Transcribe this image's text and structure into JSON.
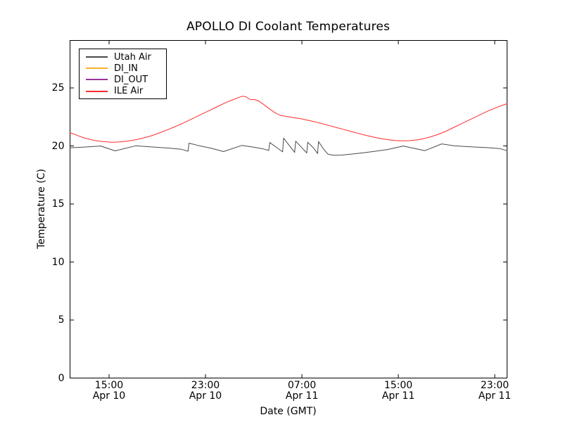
{
  "figure_background": "#ffffff",
  "frame_color": "#000000",
  "chart_data": {
    "type": "line",
    "title": "APOLLO DI Coolant Temperatures",
    "xlabel": "Date (GMT)",
    "ylabel": "Temperature (C)",
    "grid": false,
    "legend_position": "upper left",
    "x_axis_note": "x values are hours since Apr 10 12:00 GMT",
    "xlim": [
      -0.24,
      36.02
    ],
    "ylim": [
      0,
      29.1
    ],
    "y_ticks": [
      0,
      5,
      10,
      15,
      20,
      25
    ],
    "x_ticks": [
      {
        "value": 3,
        "time": "15:00",
        "date": "Apr 10"
      },
      {
        "value": 11,
        "time": "23:00",
        "date": "Apr 10"
      },
      {
        "value": 19,
        "time": "07:00",
        "date": "Apr 11"
      },
      {
        "value": 27,
        "time": "15:00",
        "date": "Apr 11"
      },
      {
        "value": 35,
        "time": "23:00",
        "date": "Apr 11"
      }
    ],
    "series": [
      {
        "name": "Utah Air",
        "color": "#4a4a4a",
        "points": [
          [
            -0.24,
            19.85
          ],
          [
            0.8,
            19.9
          ],
          [
            2.3,
            20.0
          ],
          [
            3.5,
            19.58
          ],
          [
            5.2,
            20.02
          ],
          [
            6.5,
            19.92
          ],
          [
            8.0,
            19.82
          ],
          [
            9.0,
            19.72
          ],
          [
            9.55,
            19.55
          ],
          [
            9.63,
            20.25
          ],
          [
            10.5,
            20.02
          ],
          [
            11.5,
            19.8
          ],
          [
            12.5,
            19.52
          ],
          [
            14.0,
            20.05
          ],
          [
            15.0,
            19.9
          ],
          [
            15.8,
            19.75
          ],
          [
            16.25,
            19.62
          ],
          [
            16.33,
            20.3
          ],
          [
            16.8,
            19.95
          ],
          [
            17.4,
            19.5
          ],
          [
            17.48,
            20.68
          ],
          [
            17.95,
            20.05
          ],
          [
            18.4,
            19.45
          ],
          [
            18.48,
            20.42
          ],
          [
            18.95,
            19.9
          ],
          [
            19.4,
            19.4
          ],
          [
            19.48,
            20.33
          ],
          [
            19.95,
            19.85
          ],
          [
            20.3,
            19.35
          ],
          [
            20.38,
            20.38
          ],
          [
            20.75,
            19.8
          ],
          [
            21.15,
            19.3
          ],
          [
            21.6,
            19.2
          ],
          [
            22.3,
            19.22
          ],
          [
            23.1,
            19.3
          ],
          [
            24.1,
            19.42
          ],
          [
            25.1,
            19.55
          ],
          [
            26.1,
            19.7
          ],
          [
            27.4,
            20.0
          ],
          [
            28.3,
            19.8
          ],
          [
            29.2,
            19.6
          ],
          [
            30.6,
            20.18
          ],
          [
            31.6,
            20.02
          ],
          [
            32.6,
            19.95
          ],
          [
            33.6,
            19.9
          ],
          [
            34.6,
            19.85
          ],
          [
            35.4,
            19.78
          ],
          [
            36.02,
            19.6
          ]
        ]
      },
      {
        "name": "DI_IN",
        "color": "#ffae2a",
        "points": []
      },
      {
        "name": "DI_OUT",
        "color": "#993399",
        "points": []
      },
      {
        "name": "ILE Air",
        "color": "#ff2a2a",
        "points": [
          [
            -0.24,
            21.15
          ],
          [
            0.4,
            20.9
          ],
          [
            1.0,
            20.68
          ],
          [
            1.6,
            20.52
          ],
          [
            2.2,
            20.42
          ],
          [
            2.8,
            20.35
          ],
          [
            3.3,
            20.32
          ],
          [
            3.9,
            20.35
          ],
          [
            4.5,
            20.42
          ],
          [
            5.1,
            20.52
          ],
          [
            5.7,
            20.65
          ],
          [
            6.4,
            20.85
          ],
          [
            7.1,
            21.1
          ],
          [
            7.8,
            21.38
          ],
          [
            8.5,
            21.68
          ],
          [
            9.2,
            22.0
          ],
          [
            9.9,
            22.35
          ],
          [
            10.6,
            22.7
          ],
          [
            11.3,
            23.05
          ],
          [
            12.0,
            23.4
          ],
          [
            12.7,
            23.75
          ],
          [
            13.3,
            24.0
          ],
          [
            13.8,
            24.2
          ],
          [
            14.1,
            24.3
          ],
          [
            14.4,
            24.22
          ],
          [
            14.7,
            24.0
          ],
          [
            15.1,
            24.0
          ],
          [
            15.4,
            23.88
          ],
          [
            15.8,
            23.6
          ],
          [
            16.3,
            23.2
          ],
          [
            16.8,
            22.85
          ],
          [
            17.2,
            22.65
          ],
          [
            17.7,
            22.55
          ],
          [
            18.3,
            22.45
          ],
          [
            18.9,
            22.35
          ],
          [
            19.5,
            22.22
          ],
          [
            20.1,
            22.08
          ],
          [
            20.7,
            21.92
          ],
          [
            21.3,
            21.75
          ],
          [
            21.9,
            21.58
          ],
          [
            22.5,
            21.42
          ],
          [
            23.1,
            21.25
          ],
          [
            23.7,
            21.08
          ],
          [
            24.3,
            20.92
          ],
          [
            24.9,
            20.78
          ],
          [
            25.5,
            20.65
          ],
          [
            26.1,
            20.55
          ],
          [
            26.7,
            20.48
          ],
          [
            27.3,
            20.45
          ],
          [
            27.9,
            20.46
          ],
          [
            28.5,
            20.52
          ],
          [
            29.1,
            20.63
          ],
          [
            29.7,
            20.8
          ],
          [
            30.3,
            21.0
          ],
          [
            30.9,
            21.25
          ],
          [
            31.5,
            21.55
          ],
          [
            32.1,
            21.85
          ],
          [
            32.7,
            22.15
          ],
          [
            33.3,
            22.45
          ],
          [
            33.9,
            22.75
          ],
          [
            34.5,
            23.05
          ],
          [
            35.1,
            23.3
          ],
          [
            35.6,
            23.5
          ],
          [
            36.02,
            23.65
          ]
        ]
      }
    ]
  }
}
